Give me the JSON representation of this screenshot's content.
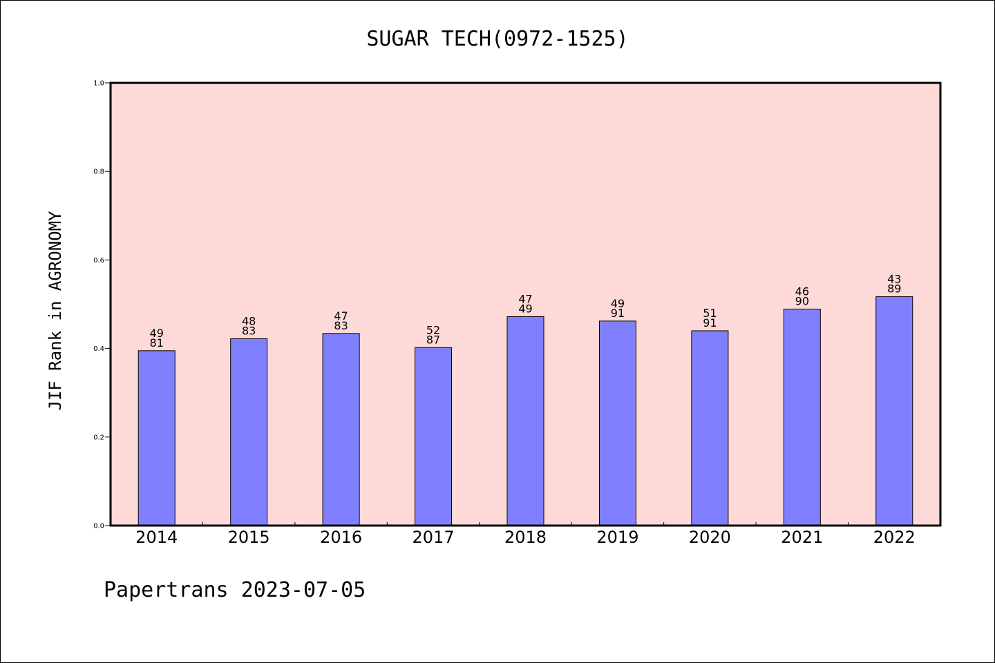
{
  "chart_data": {
    "type": "bar",
    "title": "SUGAR TECH(0972-1525)",
    "xlabel": "",
    "ylabel": "JIF Rank in AGRONOMY",
    "ylim": [
      0,
      1.0
    ],
    "yticks": [
      "0.0",
      "0.2",
      "0.4",
      "0.6",
      "0.8",
      "1.0"
    ],
    "categories": [
      "2014",
      "2015",
      "2016",
      "2017",
      "2018",
      "2019",
      "2020",
      "2021",
      "2022"
    ],
    "values": [
      0.395,
      0.422,
      0.434,
      0.402,
      0.472,
      0.462,
      0.44,
      0.489,
      0.517
    ],
    "ranks": [
      "49",
      "48",
      "47",
      "52",
      "47",
      "49",
      "51",
      "46",
      "43"
    ],
    "totals": [
      "81",
      "83",
      "83",
      "87",
      "49",
      "91",
      "91",
      "90",
      "89"
    ],
    "grid": false,
    "colors": {
      "plot_background": "#fddad7",
      "bar_fill": "#8080ff",
      "bar_stroke": "#000000"
    }
  },
  "footer": {
    "text": "Papertrans 2023-07-05"
  }
}
